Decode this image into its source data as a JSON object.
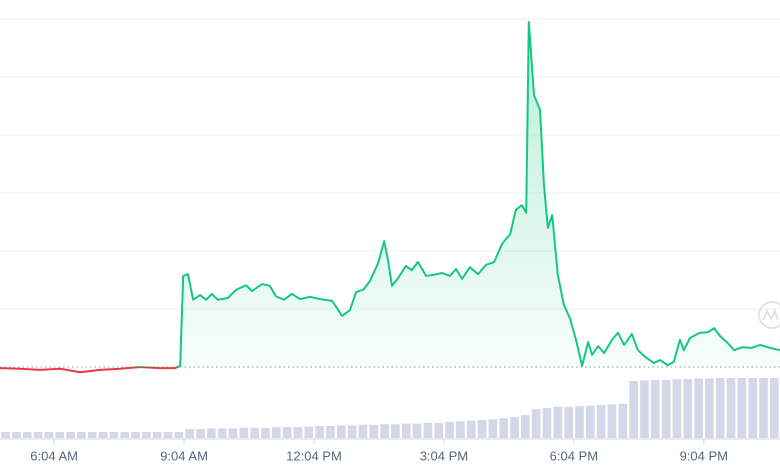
{
  "chart_data": {
    "type": "line",
    "xlim": [
      4.82,
      22.83
    ],
    "xticks": [
      {
        "value": 6.07,
        "label": "6:04 AM"
      },
      {
        "value": 9.07,
        "label": "9:04 AM"
      },
      {
        "value": 12.07,
        "label": "12:04 PM"
      },
      {
        "value": 15.07,
        "label": "3:04 PM"
      },
      {
        "value": 18.07,
        "label": "6:04 PM"
      },
      {
        "value": 21.07,
        "label": "9:04 PM"
      }
    ],
    "ylim": [
      0,
      6
    ],
    "grid_lines": [
      1,
      2,
      3,
      4,
      5,
      6
    ],
    "baseline": 0,
    "color_up": "#16c784",
    "color_down": "#ea3943",
    "x": [
      4.82,
      5.28,
      5.74,
      6.21,
      6.67,
      7.13,
      7.59,
      8.05,
      8.51,
      8.86,
      8.98,
      9.05,
      9.16,
      9.28,
      9.44,
      9.58,
      9.71,
      9.85,
      10.08,
      10.27,
      10.5,
      10.64,
      10.87,
      11.05,
      11.19,
      11.38,
      11.56,
      11.75,
      11.98,
      12.21,
      12.49,
      12.72,
      12.9,
      13.04,
      13.22,
      13.36,
      13.55,
      13.69,
      13.78,
      13.87,
      14.01,
      14.19,
      14.33,
      14.47,
      14.66,
      14.84,
      15.03,
      15.21,
      15.35,
      15.49,
      15.67,
      15.86,
      16.04,
      16.23,
      16.41,
      16.6,
      16.73,
      16.87,
      16.97,
      17.03,
      17.15,
      17.29,
      17.38,
      17.47,
      17.57,
      17.7,
      17.84,
      17.98,
      18.12,
      18.26,
      18.4,
      18.49,
      18.63,
      18.77,
      18.95,
      19.09,
      19.23,
      19.41,
      19.55,
      19.74,
      19.92,
      20.06,
      20.24,
      20.38,
      20.52,
      20.61,
      20.75,
      20.98,
      21.17,
      21.31,
      21.45,
      21.63,
      21.77,
      21.95,
      22.18,
      22.37,
      22.6,
      22.83
    ],
    "values": [
      -0.02,
      -0.03,
      -0.05,
      -0.03,
      -0.09,
      -0.05,
      -0.03,
      0,
      -0.02,
      -0.02,
      0.02,
      1.57,
      1.6,
      1.16,
      1.24,
      1.16,
      1.26,
      1.16,
      1.19,
      1.33,
      1.41,
      1.31,
      1.43,
      1.4,
      1.22,
      1.16,
      1.26,
      1.17,
      1.21,
      1.17,
      1.14,
      0.88,
      0.98,
      1.29,
      1.34,
      1.48,
      1.79,
      2.17,
      1.84,
      1.4,
      1.53,
      1.74,
      1.67,
      1.81,
      1.57,
      1.59,
      1.62,
      1.57,
      1.69,
      1.52,
      1.72,
      1.6,
      1.76,
      1.81,
      2.12,
      2.29,
      2.71,
      2.79,
      2.66,
      5.95,
      4.69,
      4.43,
      3.14,
      2.4,
      2.62,
      1.59,
      1.07,
      0.84,
      0.47,
      0.02,
      0.43,
      0.21,
      0.36,
      0.24,
      0.47,
      0.59,
      0.38,
      0.57,
      0.29,
      0.16,
      0.07,
      0.12,
      0.03,
      0.09,
      0.47,
      0.29,
      0.5,
      0.59,
      0.6,
      0.67,
      0.53,
      0.41,
      0.29,
      0.34,
      0.33,
      0.38,
      0.33,
      0.29
    ],
    "volume": {
      "color": "#d3d7e8",
      "ylim": [
        0,
        100
      ],
      "x": [
        4.95,
        5.2,
        5.45,
        5.7,
        5.95,
        6.2,
        6.45,
        6.7,
        6.95,
        7.2,
        7.45,
        7.7,
        7.95,
        8.2,
        8.45,
        8.7,
        8.95,
        9.2,
        9.45,
        9.7,
        9.95,
        10.2,
        10.45,
        10.7,
        10.95,
        11.2,
        11.45,
        11.7,
        11.95,
        12.2,
        12.45,
        12.7,
        12.95,
        13.2,
        13.45,
        13.7,
        13.95,
        14.2,
        14.45,
        14.7,
        14.95,
        15.2,
        15.45,
        15.7,
        15.95,
        16.2,
        16.45,
        16.7,
        16.95,
        17.2,
        17.45,
        17.7,
        17.95,
        18.2,
        18.45,
        18.7,
        18.95,
        19.2,
        19.45,
        19.7,
        19.95,
        20.2,
        20.45,
        20.7,
        20.95,
        21.2,
        21.45,
        21.7,
        21.95,
        22.2,
        22.45,
        22.7
      ],
      "values": [
        10,
        10,
        10,
        10,
        10,
        10,
        10,
        10,
        10,
        10,
        10,
        10,
        10,
        10,
        10,
        10,
        10,
        15,
        15,
        16,
        16,
        16,
        17,
        17,
        17,
        18,
        18,
        18,
        19,
        20,
        20,
        21,
        21,
        22,
        22,
        23,
        23,
        24,
        24,
        25,
        25,
        27,
        28,
        29,
        30,
        31,
        33,
        35,
        38,
        48,
        50,
        52,
        52,
        53,
        54,
        55,
        56,
        57,
        95,
        96,
        97,
        97,
        98,
        98,
        99,
        99,
        100,
        100,
        100,
        100,
        100,
        100
      ]
    }
  }
}
